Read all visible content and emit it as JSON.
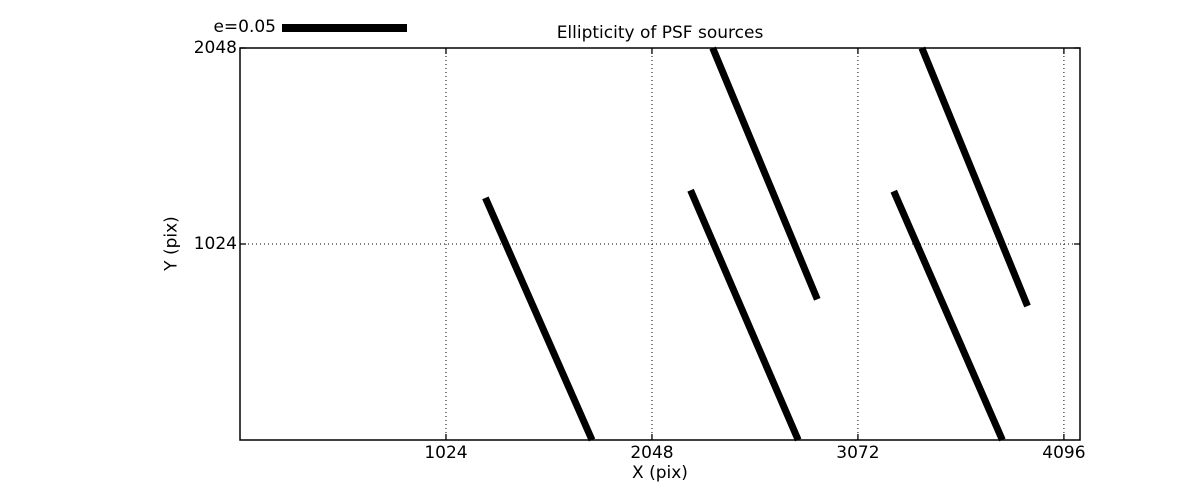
{
  "chart_data": {
    "type": "line",
    "subtype": "ellipticity-whisker-plot",
    "title": "Ellipticity of PSF sources",
    "xlabel": "X (pix)",
    "ylabel": "Y (pix)",
    "xlim": [
      0,
      4176
    ],
    "ylim": [
      0,
      2048
    ],
    "xticks": [
      1024,
      2048,
      3072,
      4096
    ],
    "yticks": [
      1024,
      2048
    ],
    "grid": "dotted",
    "legend": {
      "label": "e=0.05",
      "position": "upper-left-above-axes",
      "key_shape": "thick-horizontal-bar"
    },
    "segments": [
      {
        "x1": 1220,
        "y1": 1265,
        "x2": 1750,
        "y2": 0
      },
      {
        "x1": 2240,
        "y1": 1305,
        "x2": 2775,
        "y2": 0
      },
      {
        "x1": 2350,
        "y1": 2048,
        "x2": 2870,
        "y2": 735
      },
      {
        "x1": 3390,
        "y1": 2048,
        "x2": 3915,
        "y2": 700
      },
      {
        "x1": 3250,
        "y1": 1300,
        "x2": 3790,
        "y2": 0
      }
    ],
    "colors": {
      "line": "#000000",
      "background": "#ffffff",
      "text": "#000000"
    }
  }
}
